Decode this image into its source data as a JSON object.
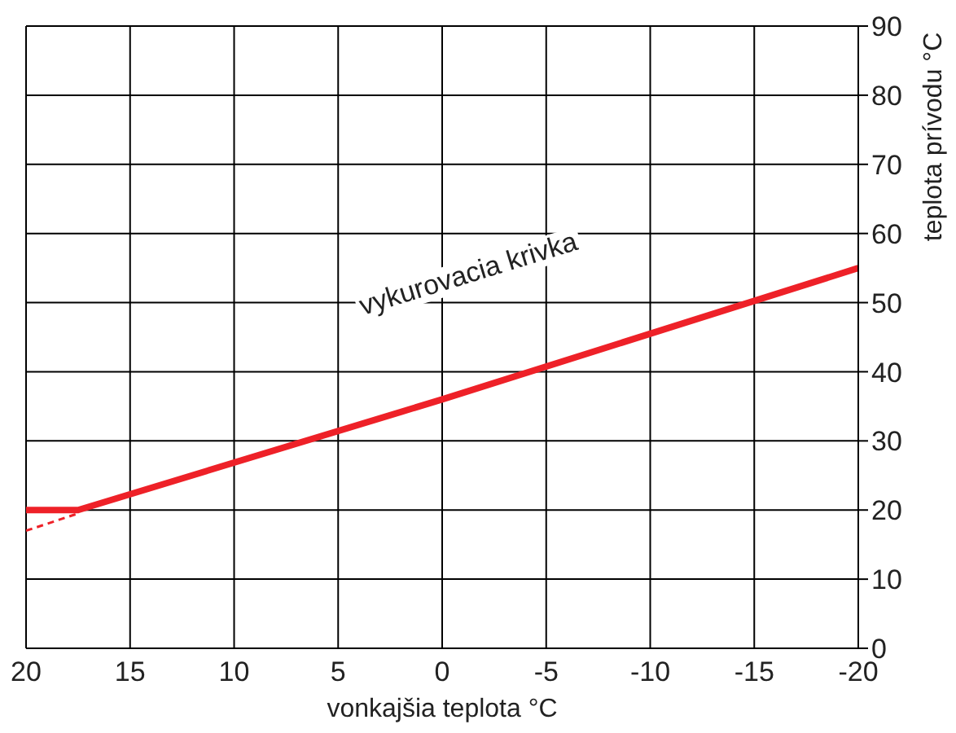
{
  "chart_data": {
    "type": "line",
    "xlabel": "vonkajšia teplota °C",
    "ylabel": "teplota prívodu °C",
    "xlim": [
      20,
      -20
    ],
    "xticks": [
      20,
      15,
      10,
      5,
      0,
      -5,
      -10,
      -15,
      -20
    ],
    "ylim": [
      0,
      90
    ],
    "yticks": [
      0,
      10,
      20,
      30,
      40,
      50,
      60,
      70,
      80,
      90
    ],
    "grid": true,
    "marker": "none",
    "annotations": [
      "vykurovacia krivka"
    ],
    "series": [
      {
        "color": "#ee2128",
        "x": [
          20,
          17.5,
          0,
          -20
        ],
        "values": [
          20,
          20,
          36,
          55
        ],
        "line_style": "solid"
      },
      {
        "color": "#ee2128",
        "x": [
          20,
          17.5
        ],
        "values": [
          17,
          19.5
        ],
        "line_style": "dashed"
      }
    ]
  }
}
